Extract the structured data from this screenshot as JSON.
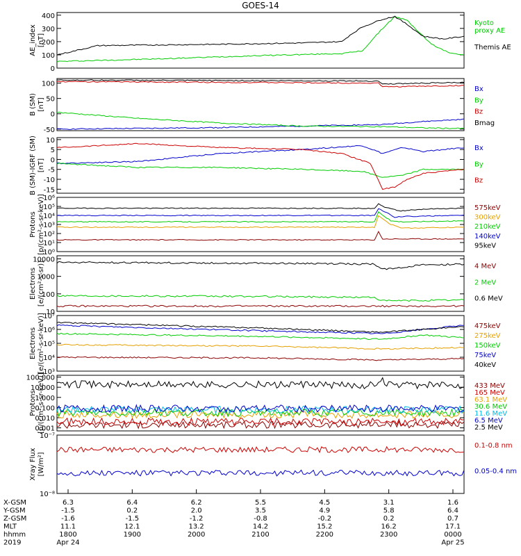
{
  "title": "GOES-14",
  "colors": {
    "black": "#000000",
    "red": "#cc0000",
    "green": "#00cc00",
    "blue": "#0000cc",
    "orange": "#e6a000",
    "cyan": "#00b8e6",
    "brown": "#8b0000"
  },
  "chart_data": [
    {
      "type": "line",
      "id": "ae",
      "ylabel": "AE_index\n[nT]",
      "ylim": [
        0,
        420
      ],
      "scale": "linear",
      "ticks": [
        "0",
        "100",
        "200",
        "300",
        "400"
      ],
      "tickvals": [
        0,
        100,
        200,
        300,
        400
      ],
      "series": [
        {
          "name": "Kyoto\nproxy AE",
          "color": "green",
          "x": [
            0,
            0.25,
            0.5,
            0.7,
            0.75,
            0.8,
            0.83,
            0.86,
            0.92,
            0.96,
            1
          ],
          "y": [
            50,
            70,
            95,
            110,
            130,
            300,
            390,
            360,
            180,
            120,
            100
          ]
        },
        {
          "name": "Themis AE",
          "color": "black",
          "x": [
            0,
            0.1,
            0.25,
            0.4,
            0.6,
            0.7,
            0.72,
            0.75,
            0.8,
            0.83,
            0.86,
            0.9,
            0.95,
            1
          ],
          "y": [
            100,
            170,
            175,
            180,
            190,
            200,
            250,
            310,
            370,
            390,
            330,
            240,
            220,
            240
          ]
        }
      ]
    },
    {
      "type": "line",
      "id": "bsm",
      "ylabel": "B (SM)\n[nT]",
      "ylim": [
        -55,
        115
      ],
      "scale": "linear",
      "ticks": [
        "-50",
        "0",
        "50",
        "100"
      ],
      "tickvals": [
        -50,
        0,
        50,
        100
      ],
      "series": [
        {
          "name": "Bx",
          "color": "blue",
          "x": [
            0,
            0.4,
            0.6,
            0.8,
            0.9,
            1
          ],
          "y": [
            -50,
            -45,
            -40,
            -35,
            -25,
            -18
          ]
        },
        {
          "name": "By",
          "color": "green",
          "x": [
            0,
            0.2,
            0.4,
            0.6,
            0.8,
            0.9,
            1
          ],
          "y": [
            5,
            -15,
            -30,
            -40,
            -42,
            -46,
            -48
          ]
        },
        {
          "name": "Bz",
          "color": "red",
          "x": [
            0,
            0.5,
            0.79,
            0.8,
            0.9,
            1
          ],
          "y": [
            105,
            102,
            100,
            88,
            90,
            92
          ]
        },
        {
          "name": "Bmag",
          "color": "black",
          "x": [
            0,
            0.5,
            0.79,
            0.8,
            0.9,
            1
          ],
          "y": [
            110,
            108,
            107,
            97,
            100,
            102
          ]
        }
      ]
    },
    {
      "type": "line",
      "id": "bigrf",
      "ylabel": "B (SM)-IGRF (SM)\n[nT]",
      "ylim": [
        -17,
        11
      ],
      "scale": "linear",
      "ticks": [
        "-15",
        "-10",
        "-5",
        "0",
        "5",
        "10"
      ],
      "tickvals": [
        -15,
        -10,
        -5,
        0,
        5,
        10
      ],
      "series": [
        {
          "name": "Bx",
          "color": "blue",
          "x": [
            0,
            0.2,
            0.4,
            0.6,
            0.75,
            0.8,
            0.85,
            0.9,
            1
          ],
          "y": [
            -2,
            -1,
            3,
            5,
            7,
            3,
            6,
            4,
            6
          ]
        },
        {
          "name": "By",
          "color": "green",
          "x": [
            0,
            0.2,
            0.4,
            0.6,
            0.75,
            0.8,
            0.85,
            0.9,
            1
          ],
          "y": [
            -2,
            -4,
            -4,
            -5,
            -6,
            -9,
            -8,
            -5,
            -5
          ]
        },
        {
          "name": "Bz",
          "color": "red",
          "x": [
            0,
            0.2,
            0.4,
            0.6,
            0.7,
            0.77,
            0.8,
            0.83,
            0.86,
            0.9,
            1
          ],
          "y": [
            6,
            8,
            6,
            5,
            3,
            -2,
            -15,
            -14,
            -10,
            -7,
            -5
          ]
        }
      ]
    },
    {
      "type": "line",
      "id": "protons",
      "scale": "log",
      "ylabel": "Protons\n[p/(cm²-s-sr-keV)]",
      "ylim": [
        1,
        1000000
      ],
      "ticks": [
        "10⁰",
        "10¹",
        "10²",
        "10³",
        "10⁴",
        "10⁵",
        "10⁶"
      ],
      "tickvals": [
        0,
        1,
        2,
        3,
        4,
        5,
        6
      ],
      "series": [
        {
          "name": "575keV",
          "color": "brown",
          "x": [
            0,
            0.78,
            0.79,
            0.8,
            0.85,
            1
          ],
          "y": [
            1.3,
            1.3,
            2.2,
            1.4,
            1.4,
            1.4
          ]
        },
        {
          "name": "300keV",
          "color": "orange",
          "x": [
            0,
            0.78,
            0.79,
            0.82,
            0.85,
            1
          ],
          "y": [
            2.7,
            2.7,
            4.0,
            3.0,
            2.6,
            2.7
          ]
        },
        {
          "name": "210keV",
          "color": "green",
          "x": [
            0,
            0.78,
            0.79,
            0.82,
            0.85,
            1
          ],
          "y": [
            3.3,
            3.3,
            4.4,
            3.4,
            3.3,
            3.4
          ]
        },
        {
          "name": "140keV",
          "color": "blue",
          "x": [
            0,
            0.78,
            0.79,
            0.83,
            0.86,
            1
          ],
          "y": [
            4.0,
            4.0,
            4.8,
            3.8,
            3.9,
            4.0
          ]
        },
        {
          "name": "95keV",
          "color": "black",
          "x": [
            0,
            0.78,
            0.79,
            0.8,
            0.84,
            0.9,
            1
          ],
          "y": [
            4.8,
            4.8,
            5.3,
            5.0,
            4.5,
            4.7,
            4.8
          ]
        }
      ]
    },
    {
      "type": "line",
      "id": "electrons1",
      "scale": "log",
      "ylabel": "Electrons\n[e/(cm²-s-sr)]",
      "ylim": [
        10,
        15000
      ],
      "ticks": [
        "10",
        "100",
        "1000",
        "10000"
      ],
      "tickvals": [
        1,
        2,
        3,
        4
      ],
      "series": [
        {
          "name": "4 MeV",
          "color": "brown",
          "x": [
            0,
            0.5,
            1
          ],
          "y": [
            1.3,
            1.3,
            1.3
          ]
        },
        {
          "name": "2 MeV",
          "color": "green",
          "x": [
            0,
            0.5,
            0.78,
            0.8,
            1
          ],
          "y": [
            1.9,
            1.85,
            1.8,
            1.6,
            1.65
          ]
        },
        {
          "name": "0.6 MeV",
          "color": "black",
          "x": [
            0,
            0.5,
            0.78,
            0.8,
            0.9,
            1
          ],
          "y": [
            3.8,
            3.75,
            3.7,
            3.4,
            3.65,
            3.7
          ]
        }
      ]
    },
    {
      "type": "line",
      "id": "electrons2",
      "scale": "log",
      "ylabel": "Electrons\n[e/(cm²-s-sr-keV)]",
      "ylim": [
        1000,
        10000000
      ],
      "ticks": [
        "10³",
        "10⁴",
        "10⁵",
        "10⁶",
        "10⁷"
      ],
      "tickvals": [
        3,
        4,
        5,
        6,
        7
      ],
      "series": [
        {
          "name": "475keV",
          "color": "brown",
          "x": [
            0,
            0.5,
            0.8,
            1
          ],
          "y": [
            4.0,
            3.95,
            3.8,
            3.9
          ]
        },
        {
          "name": "275keV",
          "color": "orange",
          "x": [
            0,
            0.5,
            0.8,
            1
          ],
          "y": [
            4.9,
            4.8,
            4.6,
            4.7
          ]
        },
        {
          "name": "150keV",
          "color": "green",
          "x": [
            0,
            0.5,
            0.8,
            0.9,
            1
          ],
          "y": [
            5.7,
            5.5,
            5.3,
            5.6,
            5.4
          ]
        },
        {
          "name": "75keV",
          "color": "blue",
          "x": [
            0,
            0.5,
            0.8,
            0.9,
            1
          ],
          "y": [
            6.3,
            5.9,
            5.7,
            6.0,
            6.3
          ]
        },
        {
          "name": "40keV",
          "color": "black",
          "x": [
            0,
            0.5,
            0.8,
            0.9,
            1
          ],
          "y": [
            6.5,
            6.1,
            5.8,
            6.0,
            6.2
          ]
        }
      ]
    },
    {
      "type": "line",
      "id": "protons2",
      "scale": "log",
      "ylabel": "Protons\n[p/(cm²-s-sr-keV)]",
      "ylim": [
        0.0005,
        150
      ],
      "ticks": [
        "0.001",
        "0.010",
        "0.100",
        "1.000",
        "10.000",
        "100.000"
      ],
      "tickvals": [
        -3,
        -2,
        -1,
        0,
        1,
        2
      ],
      "series": [
        {
          "name": "433 MeV",
          "color": "brown",
          "x": [
            0,
            1
          ],
          "y": [
            -2.7,
            -2.7
          ]
        },
        {
          "name": "165 MeV",
          "color": "red",
          "x": [
            0,
            1
          ],
          "y": [
            -2.4,
            -2.4
          ]
        },
        {
          "name": "63.1 MeV",
          "color": "orange",
          "x": [
            0,
            1
          ],
          "y": [
            -1.7,
            -1.7
          ]
        },
        {
          "name": "30.6 MeV",
          "color": "green",
          "x": [
            0,
            1
          ],
          "y": [
            -1.5,
            -1.5
          ]
        },
        {
          "name": "11.6 MeV",
          "color": "cyan",
          "x": [
            0,
            1
          ],
          "y": [
            -1.2,
            -1.2
          ]
        },
        {
          "name": "6.5 MeV",
          "color": "blue",
          "x": [
            0,
            1
          ],
          "y": [
            -1.1,
            -1.1
          ]
        },
        {
          "name": "2.5 MeV",
          "color": "black",
          "x": [
            0,
            0.5,
            0.79,
            0.8,
            0.82,
            1
          ],
          "y": [
            1.3,
            1.25,
            1.2,
            1.6,
            1.2,
            1.2
          ]
        }
      ]
    },
    {
      "type": "line",
      "id": "xray",
      "scale": "log",
      "ylabel": "Xray Flux\n[W/m²]",
      "ylim": [
        1e-08,
        1e-07
      ],
      "ticks": [
        "10⁻⁸",
        "10⁻⁷"
      ],
      "tickvals": [
        -8,
        -7
      ],
      "series": [
        {
          "name": "0.1-0.8 nm",
          "color": "red",
          "x": [
            0,
            1
          ],
          "y": [
            -7.25,
            -7.25
          ]
        },
        {
          "name": "0.05-0.4 nm",
          "color": "blue",
          "x": [
            0,
            1
          ],
          "y": [
            -7.65,
            -7.65
          ]
        }
      ]
    }
  ],
  "xaxis": {
    "rows": [
      {
        "label": "X-GSM",
        "values": [
          "6.3",
          "6.4",
          "6.2",
          "5.5",
          "4.5",
          "3.1",
          "1.6"
        ]
      },
      {
        "label": "Y-GSM",
        "values": [
          "-1.5",
          "0.2",
          "2.0",
          "3.5",
          "4.9",
          "5.8",
          "6.4"
        ]
      },
      {
        "label": "Z-GSM",
        "values": [
          "-1.6",
          "-1.5",
          "-1.2",
          "-0.8",
          "-0.2",
          "0.2",
          "0.7"
        ]
      },
      {
        "label": "MLT",
        "values": [
          "11.1",
          "12.1",
          "13.2",
          "14.2",
          "15.2",
          "16.2",
          "17.1"
        ]
      },
      {
        "label": "hhmm",
        "values": [
          "1800",
          "1900",
          "2000",
          "2100",
          "2200",
          "2300",
          "0000"
        ]
      },
      {
        "label": "2019",
        "values": [
          "Apr 24",
          "",
          "",
          "",
          "",
          "",
          "Apr 25"
        ]
      }
    ]
  }
}
